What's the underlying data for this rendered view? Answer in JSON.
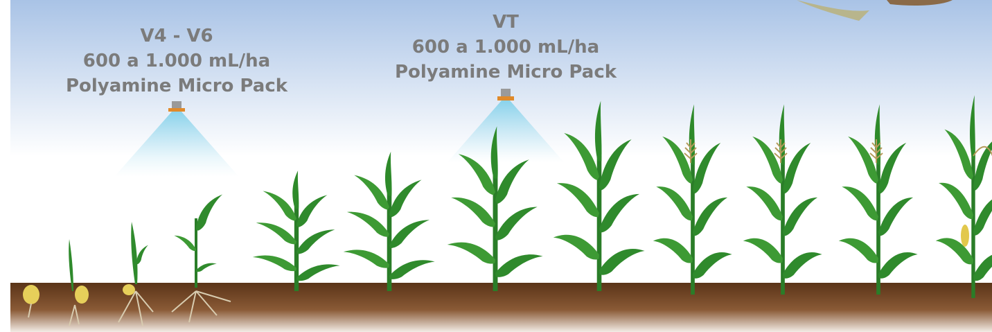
{
  "annotations": [
    {
      "stage": "V4 - V6",
      "dose": "600 a 1.000 mL/ha",
      "product": "Polyamine Micro Pack"
    },
    {
      "stage": "VT",
      "dose": "600 a 1.000 mL/ha",
      "product": "Polyamine Micro Pack"
    }
  ]
}
